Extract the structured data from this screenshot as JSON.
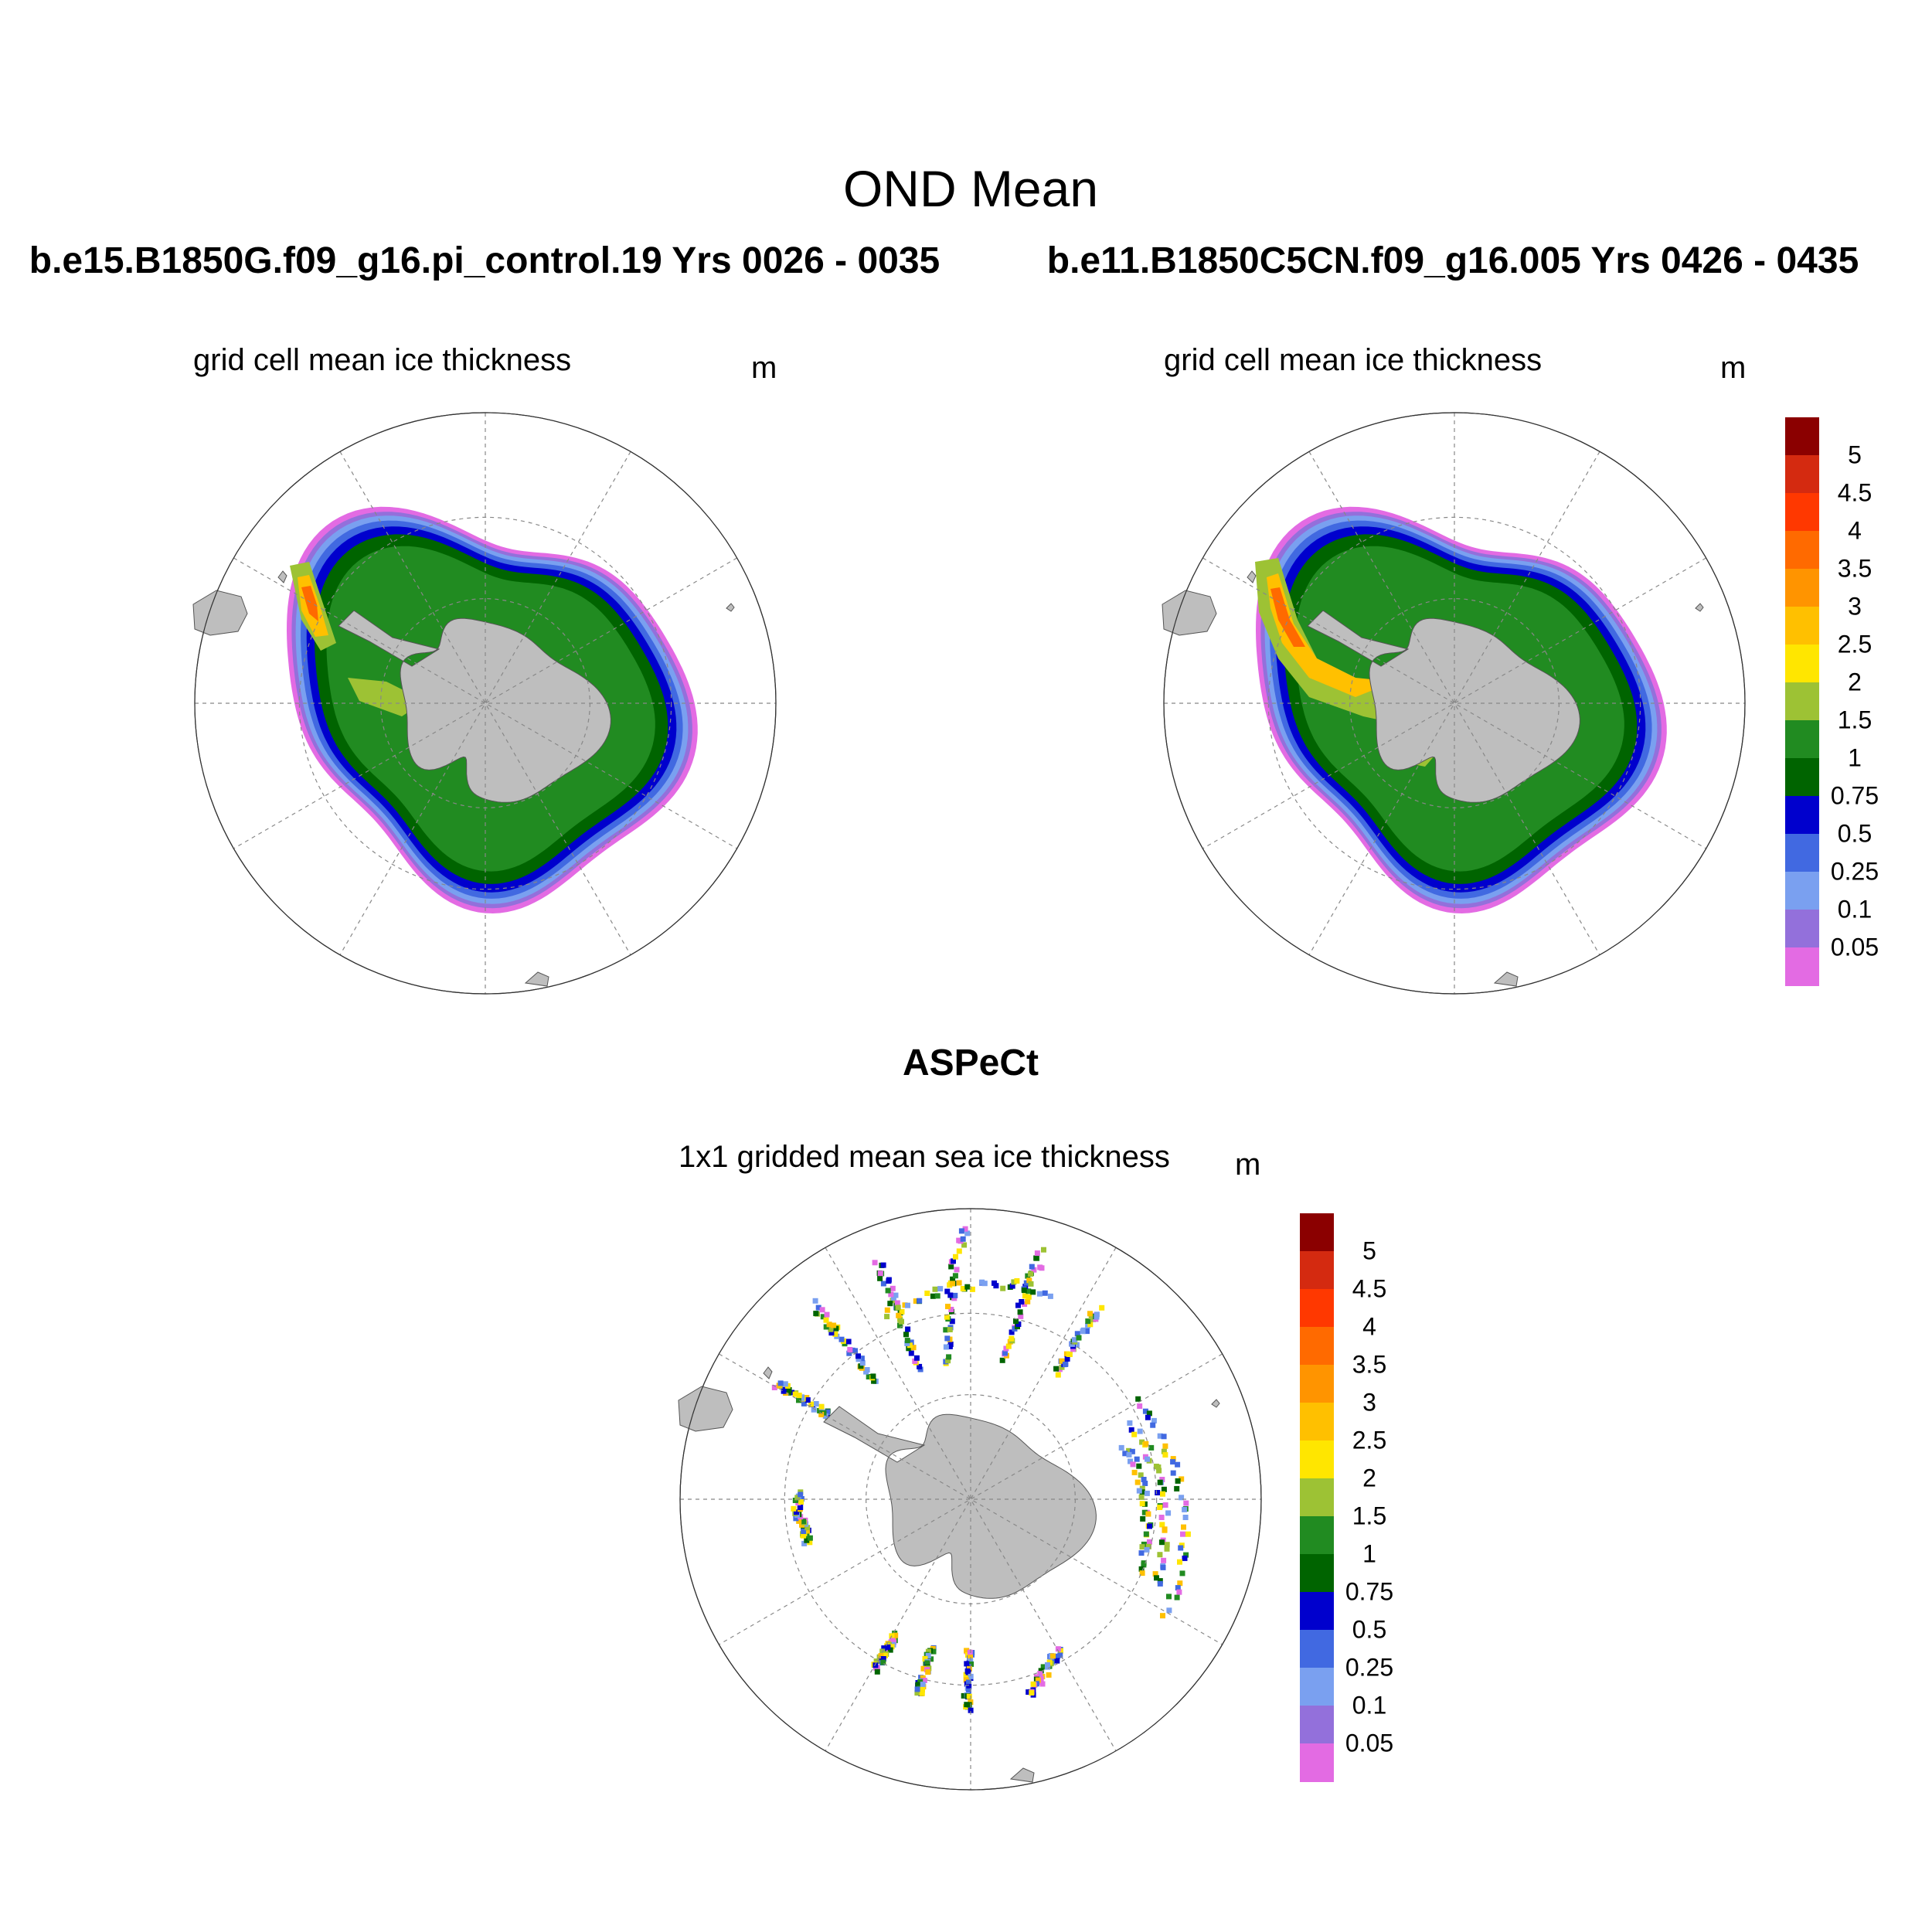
{
  "title": "OND Mean",
  "panels": [
    {
      "id": "model-left",
      "case": "b.e15.B1850G.f09_g16.pi_control.19  Yrs 0026 - 0035",
      "variable": "grid cell mean ice thickness",
      "units": "m"
    },
    {
      "id": "model-right",
      "case": "b.e11.B1850C5CN.f09_g16.005  Yrs 0426 - 0435",
      "variable": "grid cell mean ice thickness",
      "units": "m"
    },
    {
      "id": "observations",
      "case": "ASPeCt",
      "variable": "1x1 gridded mean sea ice thickness",
      "units": "m"
    }
  ],
  "colorbar": {
    "labels": [
      "5",
      "4.5",
      "4",
      "3.5",
      "3",
      "2.5",
      "2",
      "1.5",
      "1",
      "0.75",
      "0.5",
      "0.25",
      "0.1",
      "0.05"
    ],
    "colors_top_to_bottom": [
      "#8b0000",
      "#d42a10",
      "#ff3800",
      "#ff6a00",
      "#ff9400",
      "#ffc000",
      "#ffe600",
      "#9dc234",
      "#218b21",
      "#006400",
      "#0000cd",
      "#4169e1",
      "#7aa0f0",
      "#9370db",
      "#e36be3"
    ]
  },
  "colors": {
    "land": "#bebebe",
    "grid": "#888888"
  }
}
